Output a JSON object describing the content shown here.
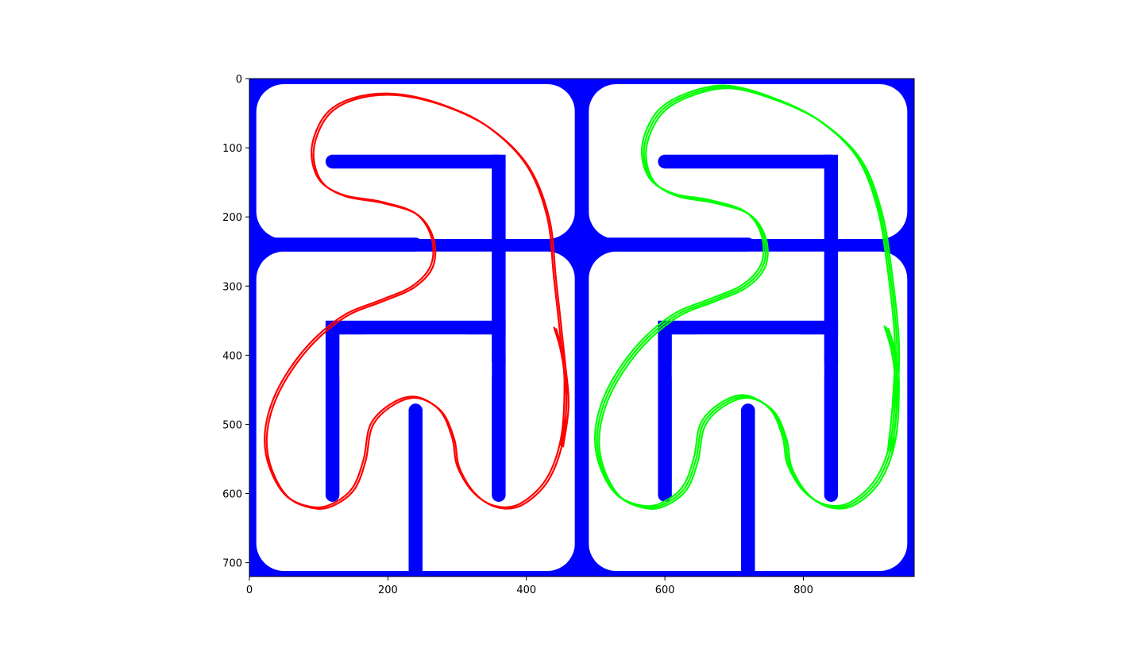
{
  "chart_data": {
    "type": "image-plot",
    "xlim": [
      0,
      960
    ],
    "ylim": [
      720,
      0
    ],
    "x_ticks": [
      0,
      200,
      400,
      600,
      800
    ],
    "y_ticks": [
      0,
      100,
      200,
      300,
      400,
      500,
      600,
      700
    ],
    "colors": {
      "wall": "#0000ff",
      "track": "#ffffff",
      "trajectory_left": "#ff0000",
      "trajectory_right": "#00ff00"
    },
    "trajectories": [
      {
        "color_key": "trajectory_left",
        "points": [
          [
            440,
            360
          ],
          [
            450,
            395
          ],
          [
            455,
            440
          ],
          [
            450,
            520
          ],
          [
            428,
            580
          ],
          [
            390,
            615
          ],
          [
            355,
            618
          ],
          [
            323,
            598
          ],
          [
            300,
            560
          ],
          [
            293,
            520
          ],
          [
            275,
            480
          ],
          [
            240,
            460
          ],
          [
            205,
            470
          ],
          [
            175,
            500
          ],
          [
            165,
            550
          ],
          [
            150,
            590
          ],
          [
            125,
            612
          ],
          [
            95,
            620
          ],
          [
            55,
            605
          ],
          [
            30,
            565
          ],
          [
            22,
            520
          ],
          [
            32,
            470
          ],
          [
            58,
            420
          ],
          [
            95,
            375
          ],
          [
            140,
            340
          ],
          [
            190,
            320
          ],
          [
            235,
            300
          ],
          [
            262,
            270
          ],
          [
            263,
            230
          ],
          [
            240,
            195
          ],
          [
            190,
            178
          ],
          [
            135,
            168
          ],
          [
            100,
            145
          ],
          [
            90,
            100
          ],
          [
            110,
            52
          ],
          [
            150,
            28
          ],
          [
            210,
            22
          ],
          [
            280,
            38
          ],
          [
            345,
            70
          ],
          [
            400,
            125
          ],
          [
            430,
            200
          ],
          [
            440,
            290
          ],
          [
            452,
            400
          ],
          [
            458,
            470
          ],
          [
            450,
            530
          ]
        ],
        "repeats": 2
      },
      {
        "color_key": "trajectory_right",
        "points": [
          [
            920,
            360
          ],
          [
            930,
            395
          ],
          [
            935,
            440
          ],
          [
            930,
            520
          ],
          [
            908,
            580
          ],
          [
            870,
            615
          ],
          [
            835,
            618
          ],
          [
            803,
            598
          ],
          [
            780,
            560
          ],
          [
            773,
            520
          ],
          [
            755,
            480
          ],
          [
            720,
            460
          ],
          [
            685,
            470
          ],
          [
            655,
            500
          ],
          [
            645,
            550
          ],
          [
            630,
            590
          ],
          [
            605,
            612
          ],
          [
            575,
            620
          ],
          [
            535,
            605
          ],
          [
            510,
            565
          ],
          [
            502,
            520
          ],
          [
            512,
            470
          ],
          [
            538,
            420
          ],
          [
            575,
            375
          ],
          [
            620,
            340
          ],
          [
            670,
            320
          ],
          [
            715,
            300
          ],
          [
            742,
            270
          ],
          [
            743,
            230
          ],
          [
            720,
            195
          ],
          [
            670,
            178
          ],
          [
            615,
            168
          ],
          [
            580,
            145
          ],
          [
            570,
            100
          ],
          [
            590,
            52
          ],
          [
            630,
            25
          ],
          [
            690,
            12
          ],
          [
            760,
            30
          ],
          [
            825,
            62
          ],
          [
            880,
            115
          ],
          [
            910,
            190
          ],
          [
            925,
            280
          ],
          [
            935,
            380
          ],
          [
            932,
            470
          ],
          [
            925,
            540
          ]
        ],
        "repeats": 3
      }
    ]
  }
}
